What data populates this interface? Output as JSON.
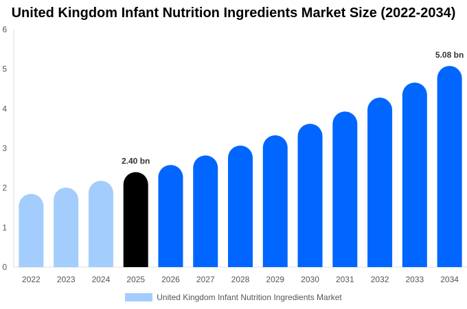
{
  "chart_data": {
    "type": "bar",
    "title": "United Kingdom Infant Nutrition Ingredients Market Size (2022-2034)",
    "categories": [
      "2022",
      "2023",
      "2024",
      "2025",
      "2026",
      "2027",
      "2028",
      "2029",
      "2030",
      "2031",
      "2032",
      "2033",
      "2034"
    ],
    "series": [
      {
        "name": "United Kingdom Infant Nutrition Ingredients Market",
        "values": [
          1.85,
          2.01,
          2.18,
          2.4,
          2.58,
          2.82,
          3.07,
          3.33,
          3.62,
          3.93,
          4.28,
          4.66,
          5.08
        ]
      }
    ],
    "data_labels": {
      "3": "2.40 bn",
      "12": "5.08 bn"
    },
    "ylim": [
      0,
      6
    ],
    "yticks": [
      0,
      1,
      2,
      3,
      4,
      5,
      6
    ],
    "xlabel": "",
    "ylabel": "",
    "grid": false,
    "legend_placement": "bottom",
    "colors": {
      "historical": "#a3cdfc",
      "current": "#000000",
      "forecast": "#0066ff"
    }
  }
}
